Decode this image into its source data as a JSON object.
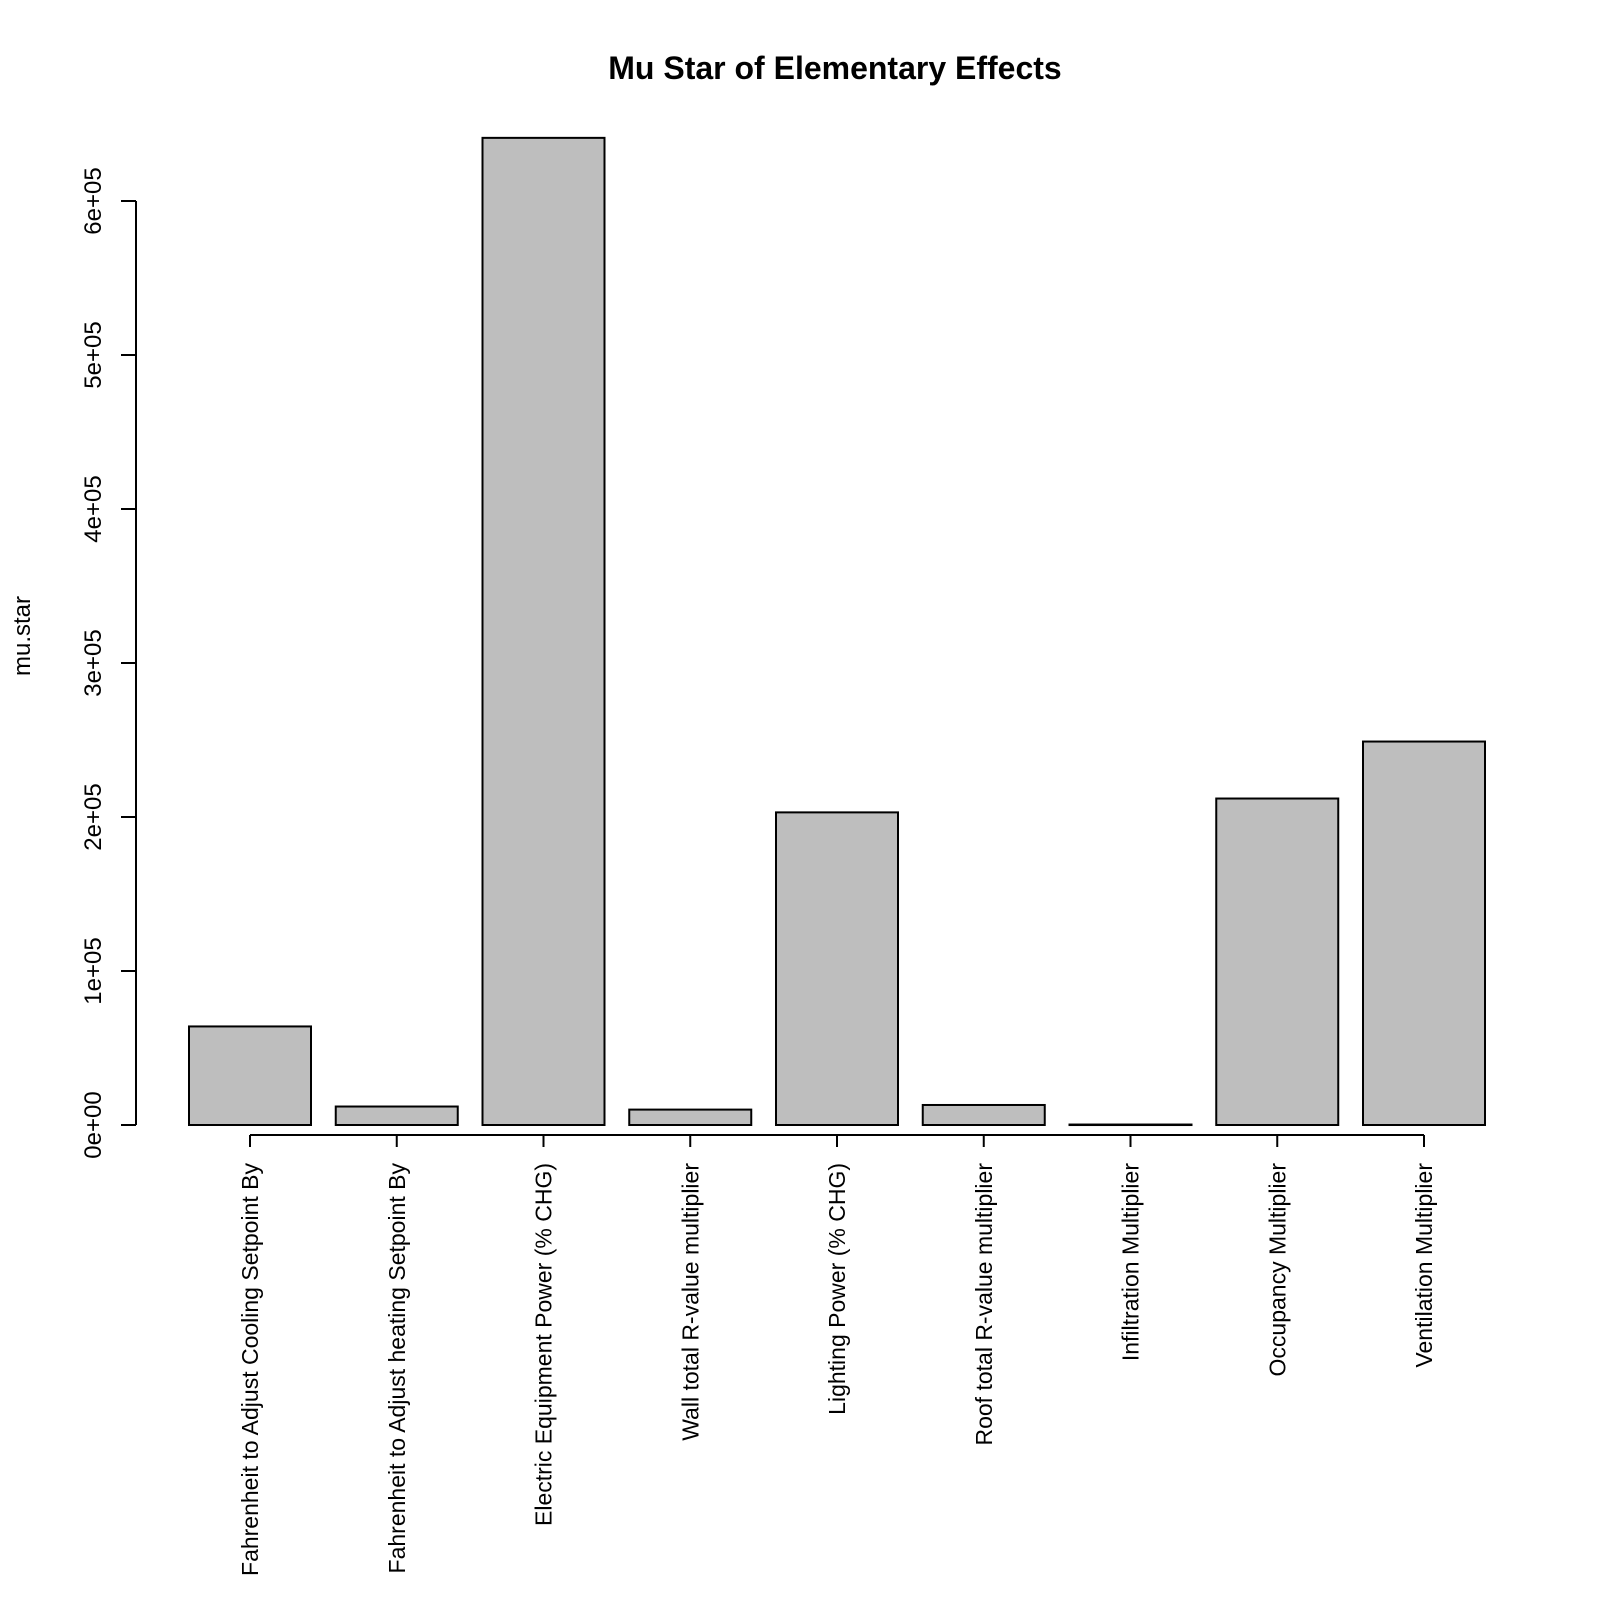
{
  "chart_data": {
    "type": "bar",
    "title": "Mu Star of Elementary Effects",
    "xlabel": "",
    "ylabel": "mu.star",
    "categories": [
      "Fahrenheit to Adjust Cooling Setpoint By",
      "Fahrenheit to Adjust heating Setpoint By",
      "Electric Equipment Power (% CHG)",
      "Wall total R-value multiplier",
      "Lighting Power (% CHG)",
      "Roof total R-value multiplier",
      "Infiltration Multiplier",
      "Occupancy Multiplier",
      "Ventilation Multiplier"
    ],
    "values": [
      64000,
      12000,
      641000,
      10000,
      203000,
      13000,
      300,
      212000,
      249000
    ],
    "ylim": [
      0,
      600000
    ],
    "yticks": [
      0,
      100000,
      200000,
      300000,
      400000,
      500000,
      600000
    ],
    "ytick_labels": [
      "0e+00",
      "1e+05",
      "2e+05",
      "3e+05",
      "4e+05",
      "5e+05",
      "6e+05"
    ],
    "grid": false,
    "bar_color": "#bebebe",
    "edge_color": "#000000"
  }
}
